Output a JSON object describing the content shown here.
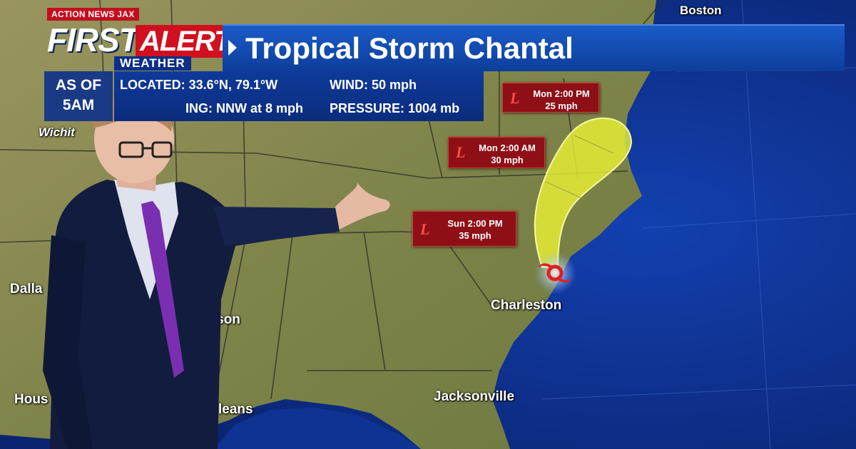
{
  "brand": {
    "station": "ACTION NEWS JAX",
    "first": "FIRST",
    "alert": "ALERT",
    "weather": "WEATHER"
  },
  "title": "Tropical Storm Chantal",
  "as_of": {
    "line1": "AS OF",
    "line2": "5AM"
  },
  "info": {
    "located": "LOCATED:  33.6°N, 79.1°W",
    "wind": "WIND:  50 mph",
    "moving": "ING: NNW at 8 mph",
    "pressure": "PRESSURE:  1004 mb"
  },
  "forecast_points": [
    {
      "time": "Mon 2:00 PM",
      "speed": "25 mph"
    },
    {
      "time": "Mon 2:00 AM",
      "speed": "30 mph"
    },
    {
      "time": "Sun 2:00 PM",
      "speed": "35 mph"
    }
  ],
  "forecast_marker": "L",
  "cities": {
    "boston": "Boston",
    "wichita": "Wichit",
    "dallas": "Dalla",
    "jackson": "ckson",
    "houston": "Hous",
    "new_orleans": "leans",
    "charleston": "Charleston",
    "jacksonville": "Jacksonville"
  },
  "colors": {
    "ocean": "#0b2a7a",
    "land": "#8d8a55",
    "cone": "#e9f035",
    "label_bg": "#8e1016",
    "banner": "#1a5cc8"
  },
  "icons": {
    "storm": "tropical-storm-icon"
  }
}
